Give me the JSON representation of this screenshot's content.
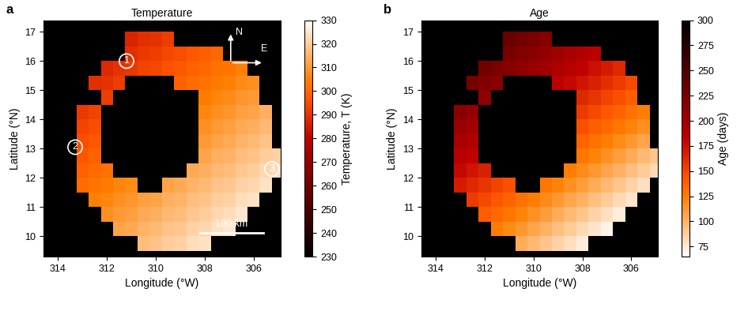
{
  "chart_data": [
    {
      "type": "heatmap",
      "panel": "a",
      "title": "Temperature",
      "xlabel": "Longitude (°W)",
      "ylabel": "Latitude (°N)",
      "x": [
        305.0,
        305.5,
        306.0,
        306.5,
        307.0,
        307.5,
        308.0,
        308.5,
        309.0,
        309.5,
        310.0,
        310.5,
        311.0,
        311.5,
        312.0,
        312.5,
        313.0
      ],
      "y": [
        9.75,
        10.25,
        10.75,
        11.25,
        11.75,
        12.25,
        12.75,
        13.25,
        13.75,
        14.25,
        14.75,
        15.25,
        15.75,
        16.25,
        16.75
      ],
      "cells": [
        [
          null,
          null,
          null,
          null,
          null,
          null,
          324,
          323,
          321,
          320,
          318,
          317,
          null,
          null,
          null,
          null,
          null
        ],
        [
          null,
          null,
          null,
          null,
          325,
          324,
          322,
          321,
          319,
          318,
          316,
          315,
          313,
          312,
          null,
          null,
          null
        ],
        [
          null,
          null,
          null,
          325,
          323,
          322,
          320,
          319,
          317,
          316,
          314,
          313,
          311,
          310,
          308,
          null,
          null
        ],
        [
          null,
          null,
          324,
          323,
          321,
          320,
          318,
          317,
          315,
          314,
          312,
          311,
          309,
          308,
          306,
          305,
          null
        ],
        [
          null,
          324,
          322,
          321,
          319,
          318,
          316,
          315,
          313,
          312,
          null,
          null,
          307,
          306,
          304,
          303,
          301
        ],
        [
          323,
          322,
          320,
          319,
          317,
          316,
          314,
          313,
          null,
          null,
          null,
          null,
          null,
          null,
          302,
          301,
          299
        ],
        [
          321,
          320,
          318,
          317,
          315,
          314,
          312,
          null,
          null,
          null,
          null,
          null,
          null,
          null,
          null,
          299,
          297
        ],
        [
          null,
          318,
          316,
          315,
          313,
          312,
          310,
          null,
          null,
          null,
          null,
          null,
          null,
          null,
          null,
          297,
          295
        ],
        [
          null,
          316,
          314,
          313,
          311,
          310,
          308,
          null,
          null,
          null,
          null,
          null,
          null,
          null,
          null,
          295,
          293
        ],
        [
          null,
          314,
          312,
          311,
          309,
          308,
          306,
          null,
          null,
          null,
          null,
          null,
          null,
          null,
          null,
          293,
          291
        ],
        [
          null,
          null,
          310,
          309,
          307,
          306,
          304,
          null,
          null,
          null,
          null,
          null,
          null,
          null,
          292,
          null,
          null
        ],
        [
          null,
          null,
          308,
          307,
          305,
          304,
          302,
          301,
          299,
          null,
          null,
          null,
          null,
          292,
          290,
          289,
          null
        ],
        [
          null,
          null,
          null,
          305,
          303,
          302,
          300,
          299,
          297,
          296,
          294,
          293,
          291,
          290,
          288,
          null,
          null
        ],
        [
          null,
          null,
          null,
          null,
          null,
          300,
          298,
          297,
          295,
          294,
          292,
          291,
          289,
          null,
          null,
          null,
          null
        ],
        [
          null,
          null,
          null,
          null,
          null,
          null,
          null,
          null,
          null,
          292,
          290,
          289,
          287,
          null,
          null,
          null,
          null
        ]
      ],
      "xlim": [
        314.6,
        304.9
      ],
      "ylim": [
        9.3,
        17.4
      ],
      "xticks": [
        314,
        312,
        310,
        308,
        306
      ],
      "yticks": [
        10,
        11,
        12,
        13,
        14,
        15,
        16,
        17
      ],
      "colorbar": {
        "label": "Temperature, T (K)",
        "range": [
          230,
          330
        ],
        "ticks": [
          230,
          240,
          250,
          260,
          270,
          280,
          290,
          300,
          310,
          320,
          330
        ]
      },
      "annotations": [
        {
          "text": "1",
          "x": 311.2,
          "y": 16.0
        },
        {
          "text": "2",
          "x": 313.3,
          "y": 13.05
        },
        {
          "text": "3",
          "x": 305.25,
          "y": 12.3
        }
      ],
      "compass": {
        "north": "N",
        "east": "E"
      },
      "scale_bar": {
        "label": "100 km",
        "x": [
          308.2,
          305.6
        ],
        "y": 10.1
      }
    },
    {
      "type": "heatmap",
      "panel": "b",
      "title": "Age",
      "xlabel": "Longitude (°W)",
      "ylabel": "Latitude (°N)",
      "x": [
        305.0,
        305.5,
        306.0,
        306.5,
        307.0,
        307.5,
        308.0,
        308.5,
        309.0,
        309.5,
        310.0,
        310.5,
        311.0,
        311.5,
        312.0,
        312.5,
        313.0
      ],
      "y": [
        9.75,
        10.25,
        10.75,
        11.25,
        11.75,
        12.25,
        12.75,
        13.25,
        13.75,
        14.25,
        14.75,
        15.25,
        15.75,
        16.25,
        16.75
      ],
      "cells": [
        [
          null,
          null,
          null,
          null,
          null,
          null,
          74,
          80,
          86,
          92,
          98,
          104,
          null,
          null,
          null,
          null,
          null
        ],
        [
          null,
          null,
          null,
          null,
          71,
          77,
          83,
          89,
          95,
          101,
          107,
          113,
          119,
          125,
          null,
          null,
          null
        ],
        [
          null,
          null,
          null,
          74,
          80,
          86,
          92,
          98,
          104,
          110,
          116,
          122,
          128,
          134,
          140,
          null,
          null
        ],
        [
          null,
          null,
          77,
          83,
          89,
          95,
          101,
          107,
          113,
          119,
          125,
          131,
          137,
          143,
          149,
          155,
          null
        ],
        [
          null,
          80,
          86,
          92,
          98,
          104,
          110,
          116,
          122,
          128,
          null,
          null,
          146,
          152,
          158,
          164,
          170
        ],
        [
          83,
          89,
          95,
          101,
          107,
          113,
          119,
          125,
          null,
          null,
          null,
          null,
          null,
          null,
          167,
          173,
          179
        ],
        [
          92,
          98,
          104,
          110,
          116,
          122,
          128,
          null,
          null,
          null,
          null,
          null,
          null,
          null,
          null,
          182,
          188
        ],
        [
          null,
          107,
          113,
          119,
          125,
          131,
          137,
          null,
          null,
          null,
          null,
          null,
          null,
          null,
          null,
          191,
          197
        ],
        [
          null,
          116,
          122,
          128,
          134,
          140,
          146,
          null,
          null,
          null,
          null,
          null,
          null,
          null,
          null,
          200,
          206
        ],
        [
          null,
          125,
          131,
          137,
          143,
          149,
          155,
          null,
          null,
          null,
          null,
          null,
          null,
          null,
          null,
          209,
          215
        ],
        [
          null,
          null,
          140,
          146,
          152,
          158,
          164,
          null,
          null,
          null,
          null,
          null,
          null,
          null,
          212,
          null,
          null
        ],
        [
          null,
          null,
          149,
          155,
          161,
          167,
          173,
          179,
          185,
          null,
          null,
          null,
          null,
          215,
          221,
          227,
          null
        ],
        [
          null,
          null,
          null,
          164,
          170,
          176,
          182,
          188,
          194,
          200,
          206,
          212,
          218,
          224,
          230,
          null,
          null
        ],
        [
          null,
          null,
          null,
          null,
          null,
          185,
          191,
          197,
          203,
          209,
          215,
          221,
          227,
          null,
          null,
          null,
          null
        ],
        [
          null,
          null,
          null,
          null,
          null,
          null,
          null,
          null,
          null,
          218,
          224,
          230,
          236,
          null,
          null,
          null,
          null
        ]
      ],
      "xlim": [
        314.6,
        304.9
      ],
      "ylim": [
        9.3,
        17.4
      ],
      "xticks": [
        314,
        312,
        310,
        308,
        306
      ],
      "yticks": [
        10,
        11,
        12,
        13,
        14,
        15,
        16,
        17
      ],
      "colorbar": {
        "label": "Age (days)",
        "range": [
          65,
          300
        ],
        "ticks": [
          75,
          100,
          125,
          150,
          175,
          200,
          225,
          250,
          275,
          300
        ]
      }
    }
  ]
}
